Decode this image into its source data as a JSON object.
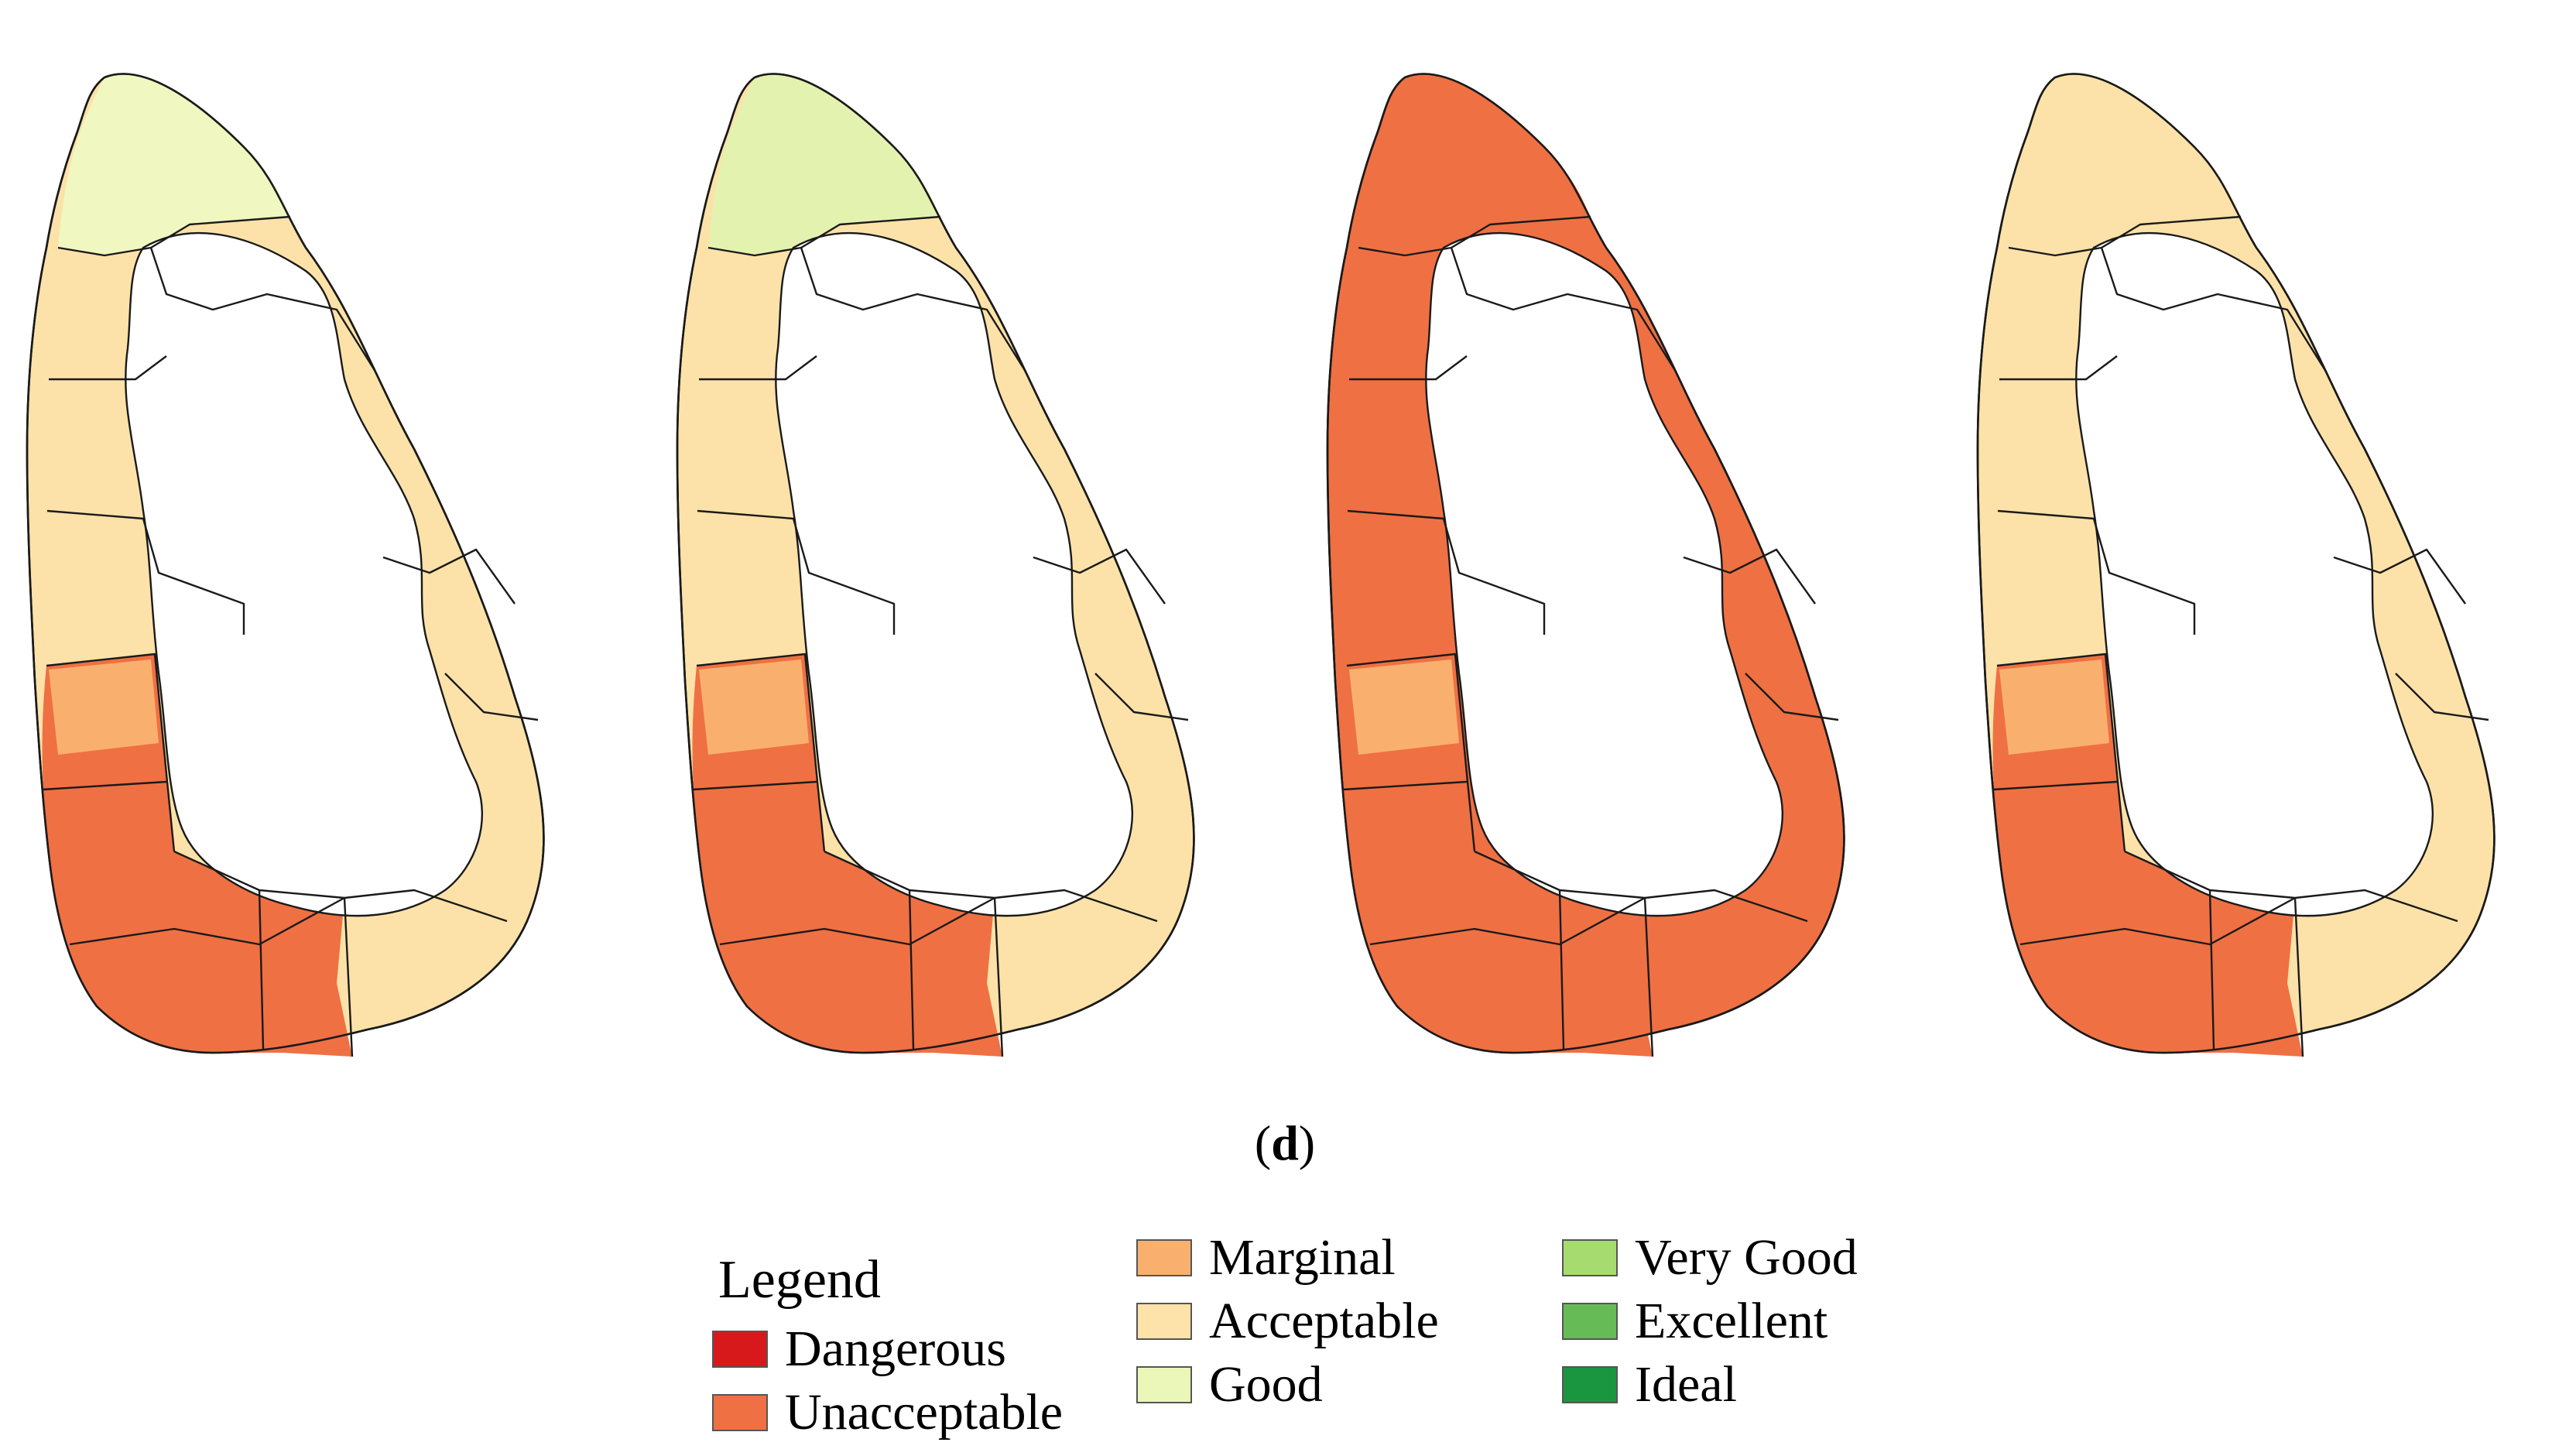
{
  "figure": {
    "panel_label": "d",
    "panel_label_open": "(",
    "panel_label_close": ")"
  },
  "maps": [
    {
      "fills": [
        "#f0f7c0",
        "#fce2a8",
        "#f9b06e",
        "#ef7043"
      ]
    },
    {
      "fills": [
        "#e4f2b0",
        "#fce2a8",
        "#f9b06e",
        "#ef7043"
      ]
    },
    {
      "fills": [
        "#ef7043",
        "#ef7043",
        "#f9b06e",
        "#ef7043"
      ]
    },
    {
      "fills": [
        "#fce2a8",
        "#fce2a8",
        "#f9b06e",
        "#ef7043"
      ]
    }
  ],
  "legend": {
    "title": "Legend",
    "items": [
      {
        "label": "Dangerous",
        "color": "#d7191c"
      },
      {
        "label": "Unacceptable",
        "color": "#ef7043"
      },
      {
        "label": "Marginal",
        "color": "#f9b06e"
      },
      {
        "label": "Acceptable",
        "color": "#fde3a9"
      },
      {
        "label": "Good",
        "color": "#eaf7b8"
      },
      {
        "label": "Very Good",
        "color": "#a6dc6f"
      },
      {
        "label": "Excellent",
        "color": "#66bb56"
      },
      {
        "label": "Ideal",
        "color": "#1a9641"
      }
    ]
  }
}
